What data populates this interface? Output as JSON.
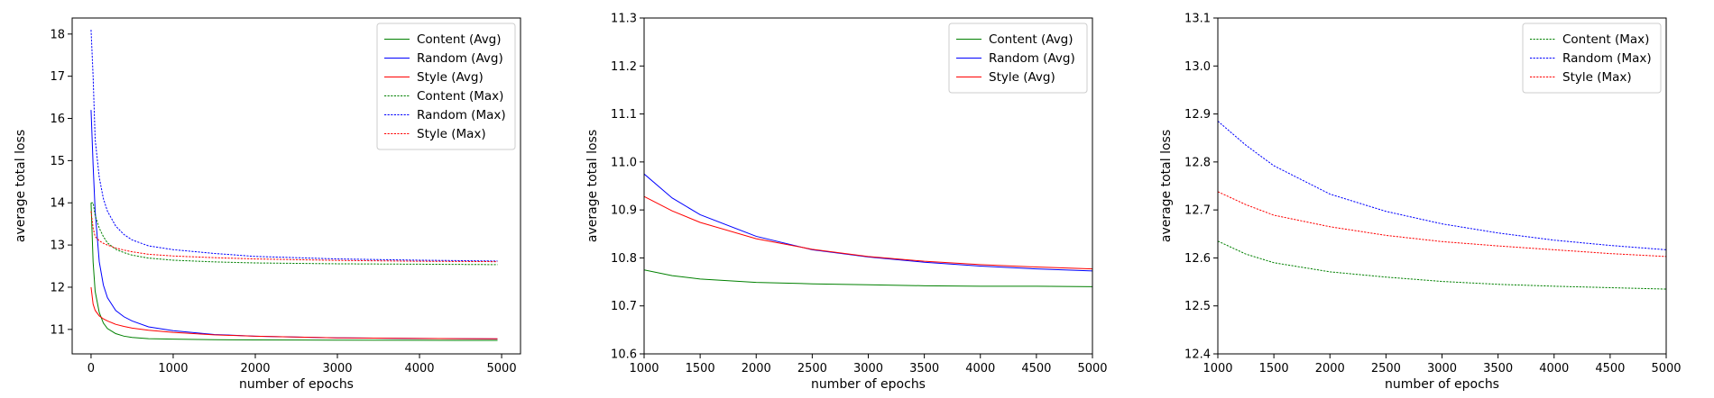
{
  "chart_data": [
    {
      "type": "line",
      "xlabel": "number of epochs",
      "ylabel": "average total loss",
      "xlim": [
        -230,
        5230
      ],
      "ylim": [
        10.42,
        18.38
      ],
      "xticks": [
        0,
        1000,
        2000,
        3000,
        4000,
        5000
      ],
      "yticks": [
        11,
        12,
        13,
        14,
        15,
        16,
        17,
        18
      ],
      "grid": false,
      "legend_position": "top-right",
      "series": [
        {
          "name": "Content (Avg)",
          "color": "#008000",
          "style": "solid",
          "x": [
            0,
            25,
            50,
            100,
            150,
            200,
            300,
            400,
            500,
            700,
            1000,
            1500,
            2000,
            3000,
            4000,
            4950
          ],
          "y": [
            14.0,
            12.6,
            11.9,
            11.4,
            11.15,
            11.02,
            10.9,
            10.84,
            10.81,
            10.78,
            10.77,
            10.755,
            10.75,
            10.745,
            10.742,
            10.74
          ]
        },
        {
          "name": "Random (Avg)",
          "color": "#0000ff",
          "style": "solid",
          "x": [
            0,
            25,
            50,
            100,
            150,
            200,
            300,
            400,
            500,
            700,
            1000,
            1500,
            2000,
            3000,
            4000,
            4950
          ],
          "y": [
            16.2,
            14.9,
            13.8,
            12.6,
            12.05,
            11.75,
            11.45,
            11.3,
            11.2,
            11.06,
            10.97,
            10.88,
            10.84,
            10.8,
            10.785,
            10.775
          ]
        },
        {
          "name": "Style (Avg)",
          "color": "#ff0000",
          "style": "solid",
          "x": [
            0,
            25,
            50,
            100,
            150,
            200,
            300,
            400,
            500,
            700,
            1000,
            1500,
            2000,
            3000,
            4000,
            4950
          ],
          "y": [
            12.0,
            11.6,
            11.45,
            11.32,
            11.25,
            11.2,
            11.12,
            11.07,
            11.03,
            10.98,
            10.93,
            10.87,
            10.84,
            10.8,
            10.785,
            10.777
          ]
        },
        {
          "name": "Content (Max)",
          "color": "#008000",
          "style": "dotted",
          "x": [
            0,
            25,
            50,
            100,
            150,
            200,
            300,
            400,
            500,
            700,
            1000,
            1500,
            2000,
            3000,
            4000,
            4950
          ],
          "y": [
            14.0,
            14.0,
            13.7,
            13.4,
            13.2,
            13.05,
            12.9,
            12.82,
            12.76,
            12.69,
            12.64,
            12.6,
            12.575,
            12.555,
            12.545,
            12.535
          ]
        },
        {
          "name": "Random (Max)",
          "color": "#0000ff",
          "style": "dotted",
          "x": [
            0,
            25,
            50,
            100,
            150,
            200,
            300,
            400,
            500,
            700,
            1000,
            1500,
            2000,
            3000,
            4000,
            4950
          ],
          "y": [
            18.1,
            17.0,
            15.5,
            14.6,
            14.1,
            13.8,
            13.45,
            13.25,
            13.12,
            12.98,
            12.89,
            12.8,
            12.73,
            12.67,
            12.64,
            12.62
          ]
        },
        {
          "name": "Style (Max)",
          "color": "#ff0000",
          "style": "dotted",
          "x": [
            0,
            25,
            50,
            100,
            150,
            200,
            300,
            400,
            500,
            700,
            1000,
            1500,
            2000,
            3000,
            4000,
            4950
          ],
          "y": [
            13.8,
            13.4,
            13.2,
            13.1,
            13.04,
            13.0,
            12.93,
            12.88,
            12.84,
            12.78,
            12.74,
            12.7,
            12.67,
            12.635,
            12.615,
            12.605
          ]
        }
      ]
    },
    {
      "type": "line",
      "xlabel": "number of epochs",
      "ylabel": "average total loss",
      "xlim": [
        1000,
        5000
      ],
      "ylim": [
        10.6,
        11.3
      ],
      "xticks": [
        1000,
        1500,
        2000,
        2500,
        3000,
        3500,
        4000,
        4500,
        5000
      ],
      "yticks": [
        10.6,
        10.7,
        10.8,
        10.9,
        11.0,
        11.1,
        11.2,
        11.3
      ],
      "grid": false,
      "legend_position": "top-right",
      "series": [
        {
          "name": "Content (Avg)",
          "color": "#008000",
          "style": "solid",
          "x": [
            1000,
            1250,
            1500,
            2000,
            2500,
            3000,
            3500,
            4000,
            4500,
            5000
          ],
          "y": [
            10.775,
            10.763,
            10.756,
            10.749,
            10.746,
            10.744,
            10.742,
            10.741,
            10.741,
            10.74
          ]
        },
        {
          "name": "Random (Avg)",
          "color": "#0000ff",
          "style": "solid",
          "x": [
            1000,
            1250,
            1500,
            2000,
            2500,
            3000,
            3500,
            4000,
            4500,
            5000
          ],
          "y": [
            10.975,
            10.925,
            10.89,
            10.845,
            10.817,
            10.802,
            10.791,
            10.783,
            10.777,
            10.773
          ]
        },
        {
          "name": "Style (Avg)",
          "color": "#ff0000",
          "style": "solid",
          "x": [
            1000,
            1250,
            1500,
            2000,
            2500,
            3000,
            3500,
            4000,
            4500,
            5000
          ],
          "y": [
            10.928,
            10.898,
            10.874,
            10.84,
            10.818,
            10.803,
            10.793,
            10.786,
            10.781,
            10.777
          ]
        }
      ]
    },
    {
      "type": "line",
      "xlabel": "number of epochs",
      "ylabel": "average total loss",
      "xlim": [
        1000,
        5000
      ],
      "ylim": [
        12.4,
        13.1
      ],
      "xticks": [
        1000,
        1500,
        2000,
        2500,
        3000,
        3500,
        4000,
        4500,
        5000
      ],
      "yticks": [
        12.4,
        12.5,
        12.6,
        12.7,
        12.8,
        12.9,
        13.0,
        13.1
      ],
      "grid": false,
      "legend_position": "top-right",
      "series": [
        {
          "name": "Content (Max)",
          "color": "#008000",
          "style": "dotted",
          "x": [
            1000,
            1250,
            1500,
            2000,
            2500,
            3000,
            3500,
            4000,
            4500,
            5000
          ],
          "y": [
            12.635,
            12.608,
            12.59,
            12.571,
            12.56,
            12.551,
            12.545,
            12.541,
            12.538,
            12.535
          ]
        },
        {
          "name": "Random (Max)",
          "color": "#0000ff",
          "style": "dotted",
          "x": [
            1000,
            1250,
            1500,
            2000,
            2500,
            3000,
            3500,
            4000,
            4500,
            5000
          ],
          "y": [
            12.885,
            12.835,
            12.792,
            12.733,
            12.697,
            12.671,
            12.652,
            12.637,
            12.626,
            12.617
          ]
        },
        {
          "name": "Style (Max)",
          "color": "#ff0000",
          "style": "dotted",
          "x": [
            1000,
            1250,
            1500,
            2000,
            2500,
            3000,
            3500,
            4000,
            4500,
            5000
          ],
          "y": [
            12.738,
            12.711,
            12.689,
            12.665,
            12.647,
            12.634,
            12.625,
            12.617,
            12.609,
            12.603
          ]
        }
      ]
    }
  ]
}
